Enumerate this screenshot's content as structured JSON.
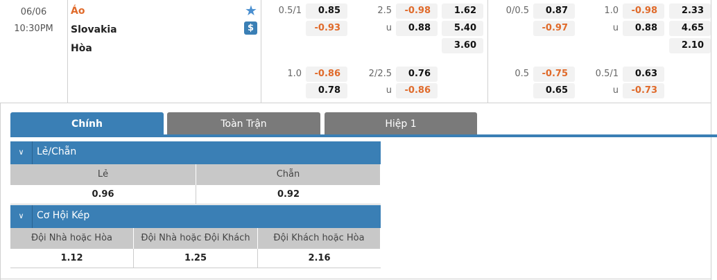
{
  "match": {
    "date": "06/06",
    "time": "10:30PM",
    "home": "Áo",
    "away": "Slovakia",
    "draw": "Hòa",
    "icons": [
      "star-icon",
      "dollar-icon"
    ]
  },
  "odds": {
    "ft_hdp_line": "0.5/1",
    "ft_hdp_home": "0.85",
    "ft_hdp_away": "-0.93",
    "ft_ou_line": "2.5",
    "ft_ou_u": "u",
    "ft_ou_over": "-0.98",
    "ft_ou_under": "0.88",
    "ft_1x2": [
      "1.62",
      "5.40",
      "3.60"
    ],
    "ft_hdp2_line": "1.0",
    "ft_hdp2_home": "-0.86",
    "ft_hdp2_away": "0.78",
    "ft_ou2_line": "2/2.5",
    "ft_ou2_u": "u",
    "ft_ou2_over": "0.76",
    "ft_ou2_under": "-0.86",
    "h1_hdp_line": "0/0.5",
    "h1_hdp_home": "0.87",
    "h1_hdp_away": "-0.97",
    "h1_ou_line": "1.0",
    "h1_ou_u": "u",
    "h1_ou_over": "-0.98",
    "h1_ou_under": "0.88",
    "h1_1x2": [
      "2.33",
      "4.65",
      "2.10"
    ],
    "h1_hdp2_line": "0.5",
    "h1_hdp2_home": "-0.75",
    "h1_hdp2_away": "0.65",
    "h1_ou2_line": "0.5/1",
    "h1_ou2_u": "u",
    "h1_ou2_over": "0.63",
    "h1_ou2_under": "-0.73"
  },
  "tabs": [
    {
      "label": "Chính",
      "active": true
    },
    {
      "label": "Toàn Trận"
    },
    {
      "label": "Hiệp 1"
    }
  ],
  "odd_even": {
    "title": "Lẻ/Chẵn",
    "headers": [
      "Lẻ",
      "Chẵn"
    ],
    "values": [
      "0.96",
      "0.92"
    ]
  },
  "double_chance": {
    "title": "Cơ Hội Kép",
    "headers": [
      "Đội Nhà hoặc Hòa",
      "Đội Nhà hoặc Đội Khách",
      "Đội Khách hoặc Hòa"
    ],
    "values": [
      "1.12",
      "1.25",
      "2.16"
    ]
  },
  "colors": {
    "accent": "#3a7fb5",
    "tab_inactive": "#7a7a7a",
    "negative": "#e06a2a",
    "home_team": "#e06a2a"
  }
}
